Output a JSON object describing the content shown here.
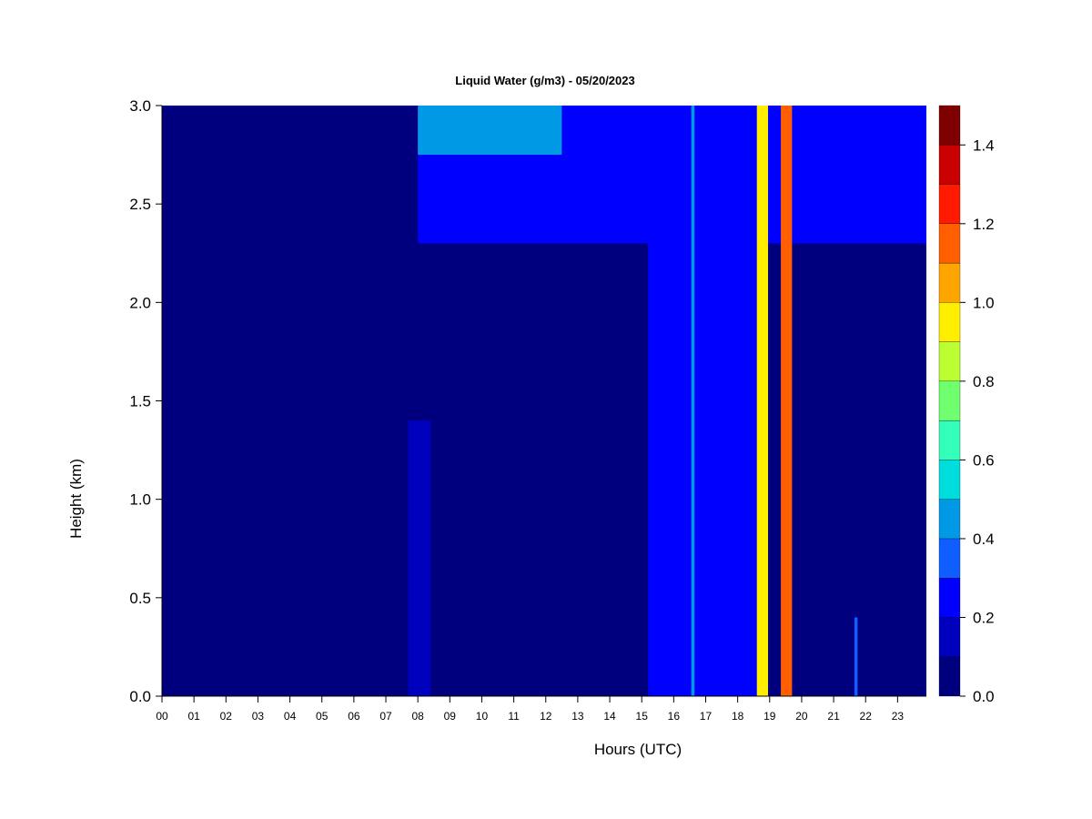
{
  "chart_data": {
    "type": "heatmap",
    "title": "Liquid Water (g/m3) - 05/20/2023",
    "xlabel": "Hours (UTC)",
    "ylabel": "Height (km)",
    "xlim": [
      0,
      23.9
    ],
    "ylim": [
      0,
      3.0
    ],
    "x_ticks": [
      "00",
      "01",
      "02",
      "03",
      "04",
      "05",
      "06",
      "07",
      "08",
      "09",
      "10",
      "11",
      "12",
      "13",
      "14",
      "15",
      "16",
      "17",
      "18",
      "19",
      "20",
      "21",
      "22",
      "23"
    ],
    "y_ticks": [
      "0.0",
      "0.5",
      "1.0",
      "1.5",
      "2.0",
      "2.5",
      "3.0"
    ],
    "colorbar": {
      "label_values": [
        "0.0",
        "0.2",
        "0.4",
        "0.6",
        "0.8",
        "1.0",
        "1.2",
        "1.4"
      ],
      "levels": [
        0.0,
        0.1,
        0.2,
        0.3,
        0.4,
        0.5,
        0.6,
        0.7,
        0.8,
        0.9,
        1.0,
        1.1,
        1.2,
        1.3,
        1.4,
        1.5
      ],
      "colors": [
        "#00007f",
        "#0000bf",
        "#0000ff",
        "#0f5eff",
        "#0099e6",
        "#00dddd",
        "#33ffbb",
        "#6fff6f",
        "#bbff33",
        "#ffee00",
        "#ffa500",
        "#ff5f00",
        "#ff1a00",
        "#c80000",
        "#7f0000"
      ]
    },
    "background_value": 0.0,
    "regions": [
      {
        "desc": "upper cloud layer after 08",
        "x": [
          8.0,
          23.9
        ],
        "y": [
          2.3,
          3.0
        ],
        "value": 0.2
      },
      {
        "desc": "upper cloud layer core",
        "x": [
          8.0,
          12.5
        ],
        "y": [
          2.75,
          3.0
        ],
        "value": 0.4
      },
      {
        "desc": "low feature near 08",
        "x": [
          7.7,
          8.4
        ],
        "y": [
          0.0,
          1.4
        ],
        "value": 0.15
      },
      {
        "desc": "columns 15-19",
        "x": [
          15.2,
          18.6
        ],
        "y": [
          0.0,
          3.0
        ],
        "value": 0.25
      },
      {
        "desc": "column near 16.6",
        "x": [
          16.55,
          16.65
        ],
        "y": [
          0.0,
          3.0
        ],
        "value": 0.45
      },
      {
        "desc": "strong column near 18.7",
        "x": [
          18.6,
          18.95
        ],
        "y": [
          0.0,
          3.0
        ],
        "value": 0.9
      },
      {
        "desc": "strong column near 19.5",
        "x": [
          19.35,
          19.7
        ],
        "y": [
          0.0,
          3.0
        ],
        "value": 1.1
      },
      {
        "desc": "column near 21.7",
        "x": [
          21.65,
          21.75
        ],
        "y": [
          0.0,
          0.4
        ],
        "value": 0.35
      }
    ],
    "grid": false,
    "legend": "colorbar-right"
  }
}
